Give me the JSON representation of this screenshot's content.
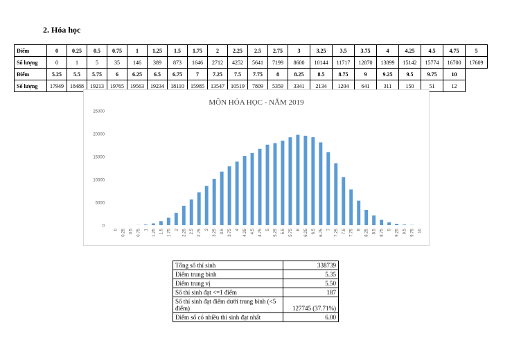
{
  "heading": "2.  Hóa học",
  "table": {
    "score_label": "Điểm",
    "count_label": "Số lượng",
    "row1_scores": [
      "0",
      "0.25",
      "0.5",
      "0.75",
      "1",
      "1.25",
      "1.5",
      "1.75",
      "2",
      "2.25",
      "2.5",
      "2.75",
      "3",
      "3.25",
      "3.5",
      "3.75",
      "4",
      "4.25",
      "4.5",
      "4.75",
      "5"
    ],
    "row1_counts": [
      "0",
      "1",
      "5",
      "35",
      "146",
      "389",
      "873",
      "1646",
      "2712",
      "4252",
      "5641",
      "7199",
      "8600",
      "10144",
      "11717",
      "12870",
      "13899",
      "15142",
      "15774",
      "16700",
      "17609"
    ],
    "row2_scores": [
      "5.25",
      "5.5",
      "5.75",
      "6",
      "6.25",
      "6.5",
      "6.75",
      "7",
      "7.25",
      "7.5",
      "7.75",
      "8",
      "8.25",
      "8.5",
      "8.75",
      "9",
      "9.25",
      "9.5",
      "9.75",
      "10"
    ],
    "row2_counts": [
      "17949",
      "18488",
      "19213",
      "19765",
      "19563",
      "19234",
      "18110",
      "15985",
      "13547",
      "10519",
      "7809",
      "5359",
      "3341",
      "2134",
      "1204",
      "641",
      "311",
      "150",
      "51",
      "12"
    ]
  },
  "chart_data": {
    "type": "bar",
    "title": "MÔN HÓA HỌC - NĂM 2019",
    "categories": [
      "0",
      "0.25",
      "0.5",
      "0.75",
      "1",
      "1.25",
      "1.5",
      "1.75",
      "2",
      "2.25",
      "2.5",
      "2.75",
      "3",
      "3.25",
      "3.5",
      "3.75",
      "4",
      "4.25",
      "4.5",
      "4.75",
      "5",
      "5.25",
      "5.5",
      "5.75",
      "6",
      "6.25",
      "6.5",
      "6.75",
      "7",
      "7.25",
      "7.5",
      "7.75",
      "8",
      "8.25",
      "8.5",
      "8.75",
      "9",
      "9.25",
      "9.5",
      "9.75",
      "10"
    ],
    "values": [
      0,
      1,
      5,
      35,
      146,
      389,
      873,
      1646,
      2712,
      4252,
      5641,
      7199,
      8600,
      10144,
      11717,
      12870,
      13899,
      15142,
      15774,
      16700,
      17609,
      17949,
      18488,
      19213,
      19765,
      19563,
      19234,
      18110,
      15985,
      13547,
      10519,
      7809,
      5359,
      3341,
      2134,
      1204,
      641,
      311,
      150,
      51,
      12
    ],
    "ylim": [
      0,
      25000
    ],
    "yticks": [
      "0",
      "5000",
      "10000",
      "15000",
      "20000",
      "25000"
    ],
    "grid": false,
    "bar_color": "#5b9bd5"
  },
  "stats": [
    {
      "label": "Tổng số thí sinh",
      "value": "338739"
    },
    {
      "label": "Điểm trung bình",
      "value": "5.35"
    },
    {
      "label": "Điểm trung vị",
      "value": "5.50"
    },
    {
      "label": "Số thí sinh đạt <=1 điểm",
      "value": "187"
    },
    {
      "label": "Số thí sinh đạt điểm dưới trung bình (<5 điểm)",
      "value": "127745 (37.71%)"
    },
    {
      "label": "Điểm số có nhiều thí sinh đạt nhất",
      "value": "6.00"
    }
  ]
}
